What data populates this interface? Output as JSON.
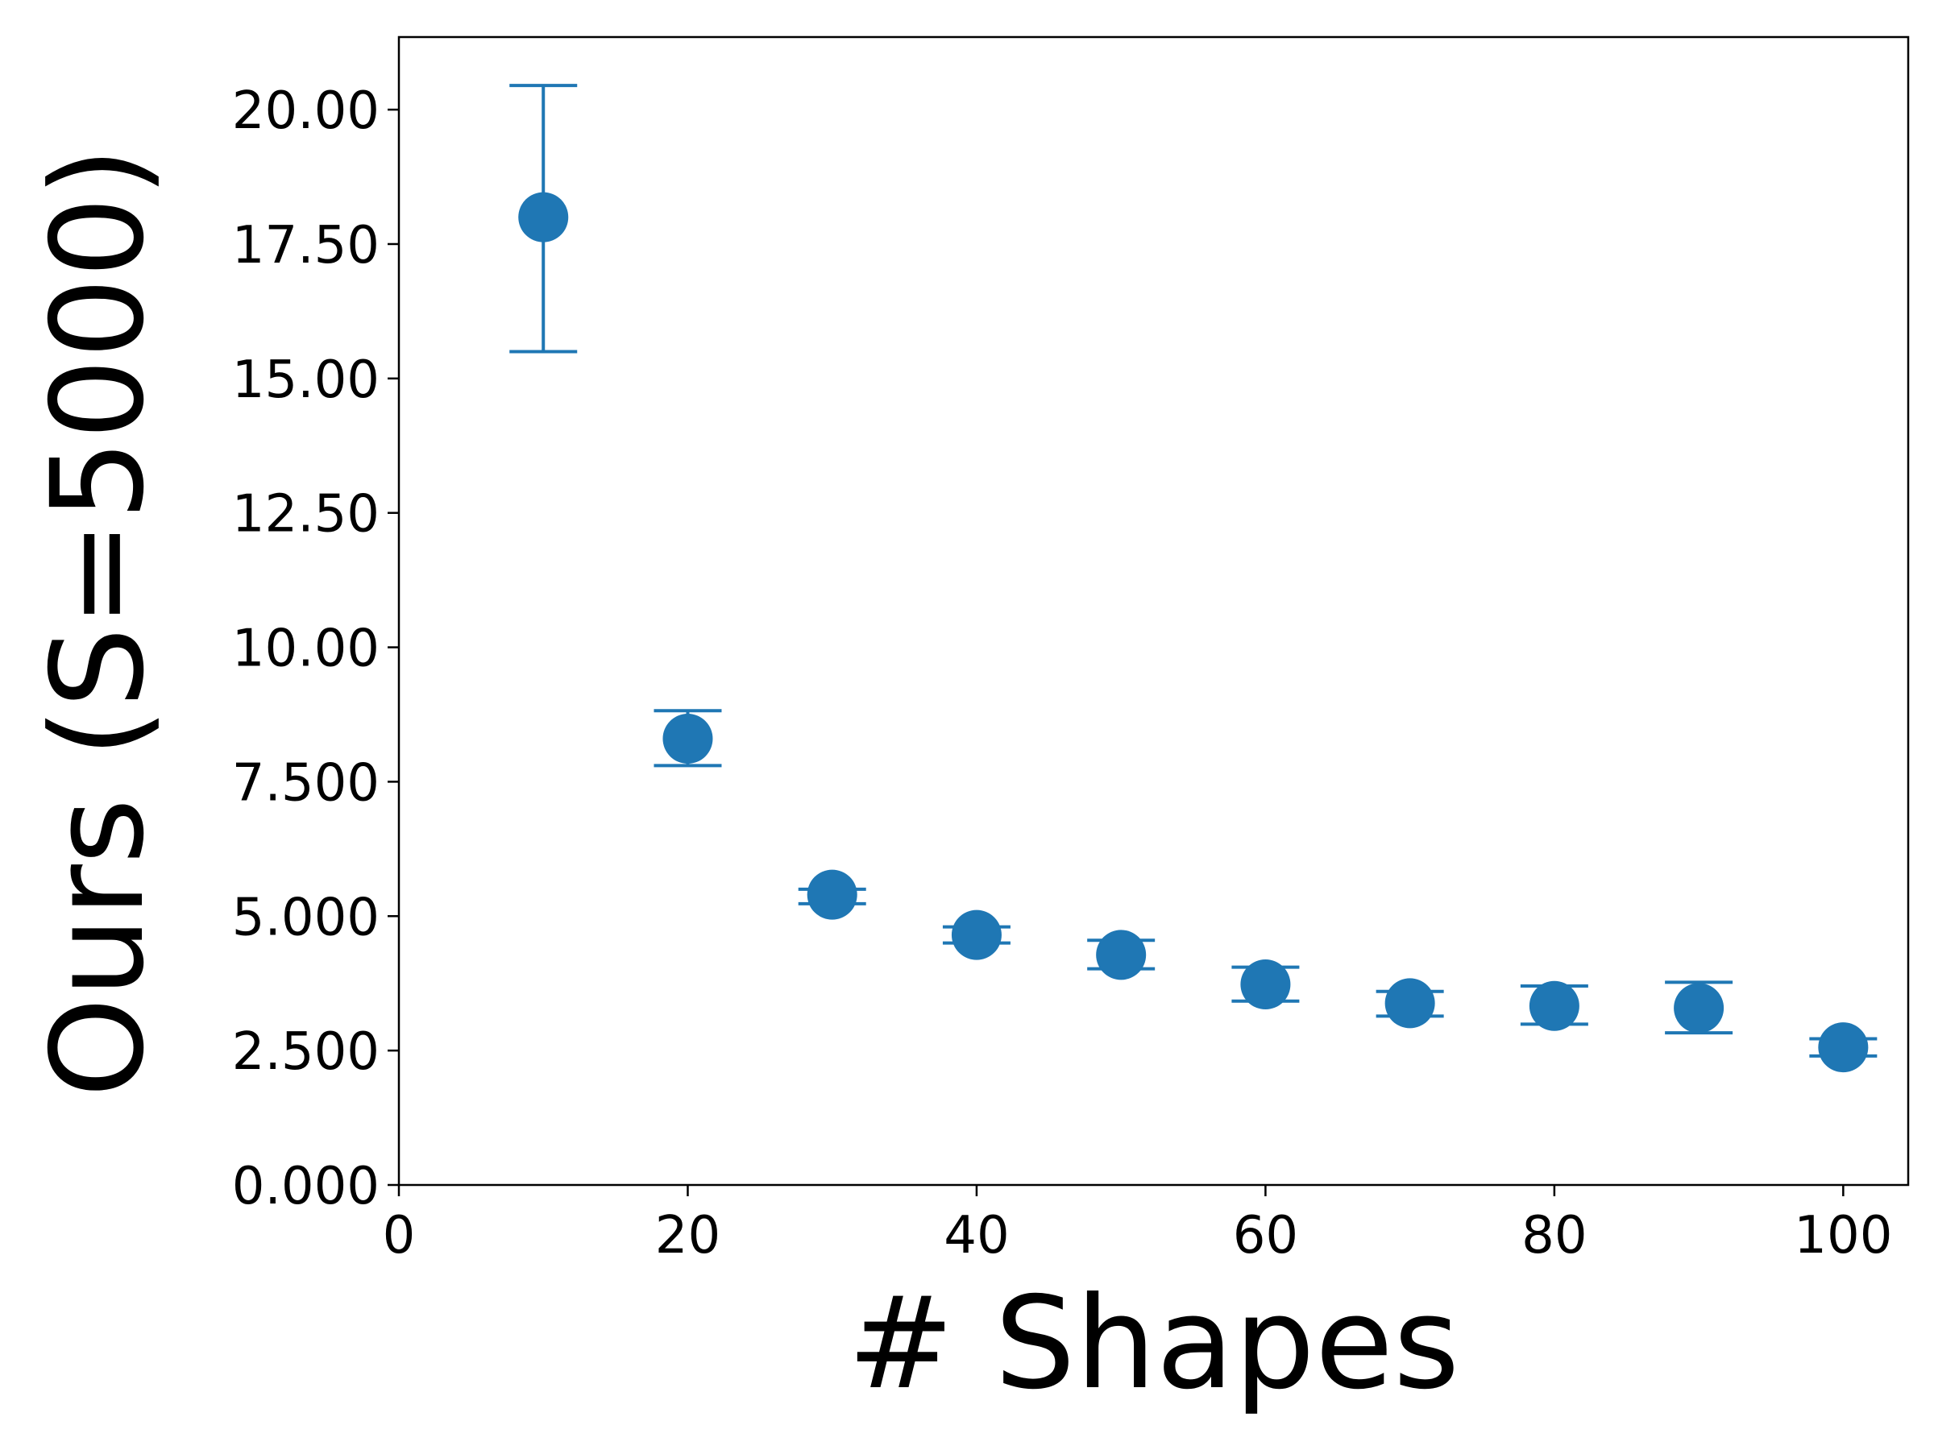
{
  "chart_data": {
    "type": "scatter",
    "title": "",
    "xlabel": "# Shapes",
    "ylabel": "Ours (S=5000)",
    "xlim": [
      0,
      104.5
    ],
    "ylim": [
      0,
      21.35
    ],
    "x_ticks": [
      0,
      20,
      40,
      60,
      80,
      100
    ],
    "x_tick_labels": [
      "0",
      "20",
      "40",
      "60",
      "80",
      "100"
    ],
    "y_ticks": [
      0,
      2.5,
      5,
      7.5,
      10,
      12.5,
      15,
      17.5,
      20
    ],
    "y_tick_labels": [
      "0.000",
      "2.500",
      "5.000",
      "7.500",
      "10.00",
      "12.50",
      "15.00",
      "17.50",
      "20.00"
    ],
    "grid": false,
    "legend": "none",
    "color": "#1f77b4",
    "series": [
      {
        "x": [
          10,
          20,
          30,
          40,
          50,
          60,
          70,
          80,
          90,
          100
        ],
        "y": [
          18.0,
          8.3,
          5.4,
          4.65,
          4.28,
          3.73,
          3.38,
          3.33,
          3.29,
          2.56
        ],
        "err_low": [
          15.5,
          7.8,
          5.23,
          4.5,
          4.02,
          3.42,
          3.14,
          2.99,
          2.83,
          2.4
        ],
        "err_high": [
          20.45,
          8.82,
          5.5,
          4.8,
          4.55,
          4.05,
          3.6,
          3.7,
          3.77,
          2.72
        ]
      }
    ]
  }
}
